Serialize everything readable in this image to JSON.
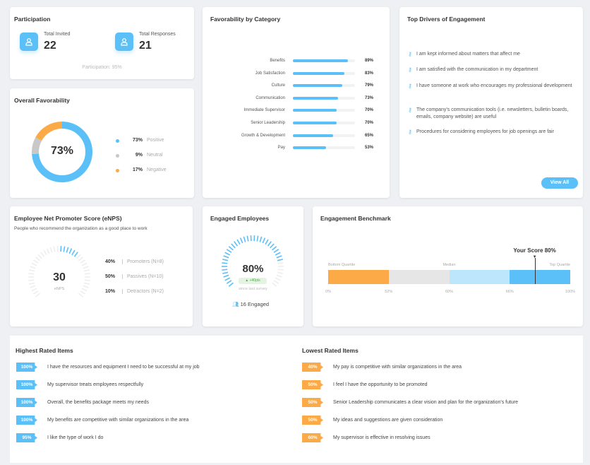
{
  "colors": {
    "blue": "#5bc0f8",
    "light_blue": "#bde6fc",
    "orange": "#fbaa47",
    "gray": "#c8c8c8",
    "green": "#4caf50"
  },
  "participation": {
    "title": "Participation",
    "invited_label": "Total Invited",
    "invited": "22",
    "responses_label": "Total Responses",
    "responses": "21",
    "footer": "Participation: 95%",
    "icon": "user-icon"
  },
  "favorability": {
    "title": "Overall Favorability",
    "center": "73%",
    "segments": [
      {
        "pct": "73%",
        "label": "Positive",
        "value": 73,
        "color": "#5bc0f8"
      },
      {
        "pct": "9%",
        "label": "Neutral",
        "value": 9,
        "color": "#c8c8c8"
      },
      {
        "pct": "17%",
        "label": "Negative",
        "value": 17,
        "color": "#fbaa47"
      }
    ]
  },
  "categories": {
    "title": "Favorability by Category",
    "items": [
      {
        "label": "Benefits",
        "value": 89,
        "pct": "89%"
      },
      {
        "label": "Job Satisfaction",
        "value": 83,
        "pct": "83%"
      },
      {
        "label": "Culture",
        "value": 79,
        "pct": "79%"
      },
      {
        "label": "Communication",
        "value": 73,
        "pct": "73%"
      },
      {
        "label": "Immediate Supervisor",
        "value": 70,
        "pct": "70%"
      },
      {
        "label": "Senior Leadership",
        "value": 70,
        "pct": "70%"
      },
      {
        "label": "Growth & Development",
        "value": 65,
        "pct": "65%"
      },
      {
        "label": "Pay",
        "value": 53,
        "pct": "53%"
      }
    ]
  },
  "drivers": {
    "title": "Top Drivers of Engagement",
    "icon": "key-icon",
    "items": [
      "I am kept informed about matters that affect me",
      "I am satisfied with the communication in my department",
      "I have someone at work who encourages my professional development",
      "The company's communication tools (i.e. newsletters, bulletin boards, emails, company website) are useful",
      "Procedures for considering employees for job openings are fair"
    ],
    "view_all": "View All"
  },
  "enps": {
    "title": "Employee Net Promoter Score (eNPS)",
    "subtitle": "People who recommend the organization as a good place to work",
    "score": "30",
    "score_value": 30,
    "score_label": "eNPS",
    "rows": [
      {
        "pct": "40%",
        "label": "Promoters (N=8)"
      },
      {
        "pct": "50%",
        "label": "Passives (N=10)"
      },
      {
        "pct": "10%",
        "label": "Detractors (N=2)"
      }
    ]
  },
  "engaged": {
    "title": "Engaged Employees",
    "value": "80%",
    "value_num": 80,
    "change": "+40pts",
    "change_caption": "since last survey",
    "count": "16 Engaged"
  },
  "benchmark": {
    "title": "Engagement Benchmark",
    "score_label": "Your Score 80%",
    "score": 80,
    "labels": [
      "Bottom Quartile",
      "Median",
      "Top Quartile"
    ],
    "ticks": [
      "0%",
      "52%",
      "60%",
      "66%",
      "100%"
    ]
  },
  "highest": {
    "title": "Highest Rated Items",
    "items": [
      {
        "pct": "100%",
        "text": "I have the resources and equipment I need to be successful at my job"
      },
      {
        "pct": "100%",
        "text": "My supervisor treats employees respectfully"
      },
      {
        "pct": "100%",
        "text": "Overall, the benefits package meets my needs"
      },
      {
        "pct": "100%",
        "text": "My benefits are competitive with similar organizations in the area"
      },
      {
        "pct": "95%",
        "text": "I like the type of work I do"
      }
    ]
  },
  "lowest": {
    "title": "Lowest Rated Items",
    "items": [
      {
        "pct": "40%",
        "text": "My pay is competitive with similar organizations in the area"
      },
      {
        "pct": "50%",
        "text": "I feel I have the opportunity to be promoted"
      },
      {
        "pct": "50%",
        "text": "Senior Leadership communicates a clear vision and plan for the organization's future"
      },
      {
        "pct": "50%",
        "text": "My ideas and suggestions are given consideration"
      },
      {
        "pct": "60%",
        "text": "My supervisor is effective in resolving issues"
      }
    ]
  }
}
